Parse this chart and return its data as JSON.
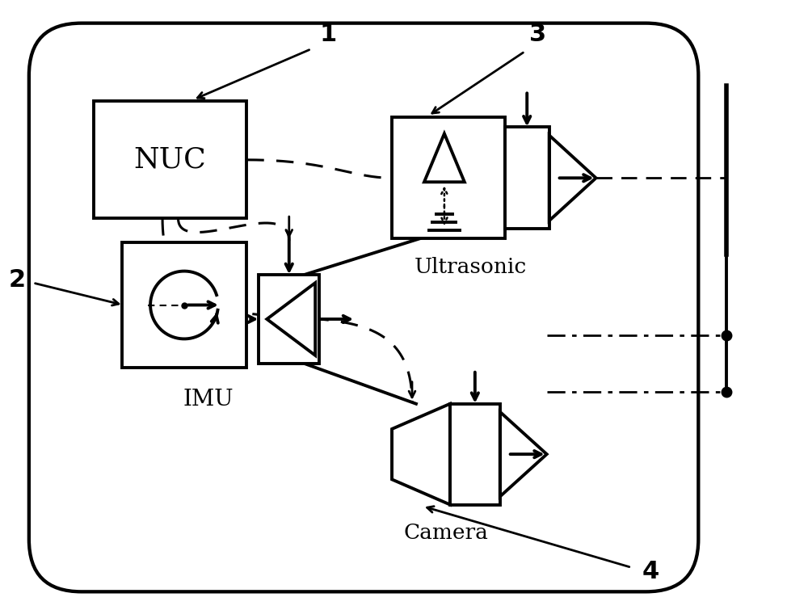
{
  "bg_color": "#ffffff",
  "line_color": "#000000",
  "fig_width": 10.0,
  "fig_height": 7.55,
  "nuc_label": "NUC",
  "imu_label": "IMU",
  "ultrasonic_label": "Ultrasonic",
  "camera_label": "Camera",
  "labels": [
    "1",
    "2",
    "3",
    "4"
  ],
  "lw": 2.8
}
